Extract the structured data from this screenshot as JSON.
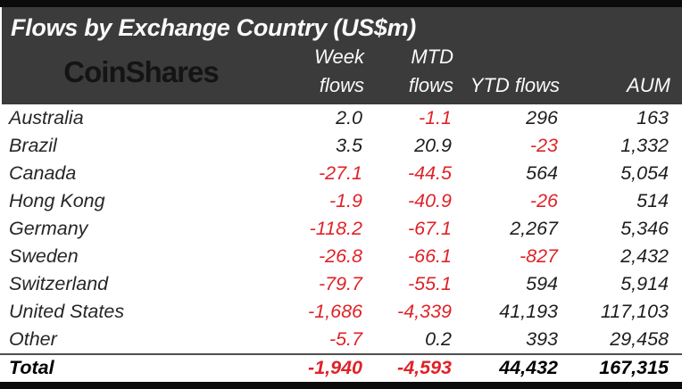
{
  "header": {
    "title": "Flows by Exchange Country (US$m)",
    "logo_text": "CoinShares",
    "columns": {
      "week": {
        "line1": "Week",
        "line2": "flows"
      },
      "mtd": {
        "line1": "MTD",
        "line2": "flows"
      },
      "ytd": {
        "label": "YTD flows"
      },
      "aum": {
        "label": "AUM"
      }
    }
  },
  "colors": {
    "header_background": "#3b3b3b",
    "header_text": "#fafafa",
    "logo_text": "#141414",
    "body_text": "#1e1e1e",
    "negative_value": "#e02228",
    "border_black": "#0b0b0b"
  },
  "table": {
    "rows": [
      {
        "country": "Australia",
        "week": "2.0",
        "mtd": "-1.1",
        "ytd": "296",
        "aum": "163"
      },
      {
        "country": "Brazil",
        "week": "3.5",
        "mtd": "20.9",
        "ytd": "-23",
        "aum": "1,332"
      },
      {
        "country": "Canada",
        "week": "-27.1",
        "mtd": "-44.5",
        "ytd": "564",
        "aum": "5,054"
      },
      {
        "country": "Hong Kong",
        "week": "-1.9",
        "mtd": "-40.9",
        "ytd": "-26",
        "aum": "514"
      },
      {
        "country": "Germany",
        "week": "-118.2",
        "mtd": "-67.1",
        "ytd": "2,267",
        "aum": "5,346"
      },
      {
        "country": "Sweden",
        "week": "-26.8",
        "mtd": "-66.1",
        "ytd": "-827",
        "aum": "2,432"
      },
      {
        "country": "Switzerland",
        "week": "-79.7",
        "mtd": "-55.1",
        "ytd": "594",
        "aum": "5,914"
      },
      {
        "country": "United States",
        "week": "-1,686",
        "mtd": "-4,339",
        "ytd": "41,193",
        "aum": "117,103"
      },
      {
        "country": "Other",
        "week": "-5.7",
        "mtd": "0.2",
        "ytd": "393",
        "aum": "29,458"
      }
    ],
    "total": {
      "country": "Total",
      "week": "-1,940",
      "mtd": "-4,593",
      "ytd": "44,432",
      "aum": "167,315"
    }
  }
}
